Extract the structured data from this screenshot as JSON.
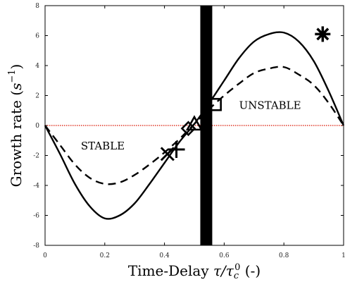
{
  "chart_data": {
    "type": "line",
    "xlabel": "Time-Delay τ/τ_c^0 (-)",
    "ylabel": "Growth rate (s^-1)",
    "xlim": [
      0,
      1
    ],
    "ylim": [
      -8,
      8
    ],
    "x_ticks": [
      "0",
      "0.2",
      "0.4",
      "0.6",
      "0.8",
      "1"
    ],
    "y_ticks": [
      "8",
      "6",
      "4",
      "2",
      "0",
      "-2",
      "-4",
      "-6",
      "-8"
    ],
    "series": [
      {
        "style": "solid",
        "x": [
          0,
          0.05,
          0.1,
          0.15,
          0.2,
          0.25,
          0.3,
          0.35,
          0.4,
          0.45,
          0.5,
          0.55,
          0.6,
          0.65,
          0.7,
          0.75,
          0.8,
          0.85,
          0.9,
          0.95,
          1.0
        ],
        "y": [
          0,
          -1.9,
          -3.9,
          -5.4,
          -6.2,
          -6.0,
          -5.2,
          -3.9,
          -2.5,
          -1.1,
          0.1,
          1.5,
          3.0,
          4.5,
          5.6,
          6.1,
          6.2,
          5.6,
          4.3,
          2.3,
          0
        ]
      },
      {
        "style": "dashed",
        "x": [
          0,
          0.05,
          0.1,
          0.15,
          0.2,
          0.25,
          0.3,
          0.35,
          0.4,
          0.45,
          0.5,
          0.55,
          0.6,
          0.65,
          0.7,
          0.75,
          0.8,
          0.85,
          0.9,
          0.95,
          1.0
        ],
        "y": [
          0,
          -1.3,
          -2.6,
          -3.5,
          -3.9,
          -3.8,
          -3.3,
          -2.6,
          -1.8,
          -0.9,
          0.1,
          1.1,
          2.0,
          2.8,
          3.5,
          3.8,
          3.9,
          3.4,
          2.7,
          1.5,
          0
        ]
      }
    ],
    "reference_line": {
      "y": 0,
      "color": "#e03a2a",
      "style": "dotted"
    },
    "vertical_band": {
      "x_from": 0.52,
      "x_to": 0.56,
      "color": "#000000"
    },
    "markers": [
      {
        "symbol": "asterisk",
        "x": 0.93,
        "y": 6.1
      },
      {
        "symbol": "plus",
        "x": 0.44,
        "y": -1.6
      },
      {
        "symbol": "cross",
        "x": 0.41,
        "y": -1.9
      },
      {
        "symbol": "triangle",
        "x": 0.5,
        "y": 0.1
      },
      {
        "symbol": "diamond",
        "x": 0.48,
        "y": -0.2
      },
      {
        "symbol": "square",
        "x": 0.57,
        "y": 1.4
      }
    ],
    "annotations": [
      {
        "text": "STABLE",
        "x": 0.12,
        "y": -1.6
      },
      {
        "text": "UNSTABLE",
        "x": 0.65,
        "y": 1.1
      }
    ],
    "grid": false,
    "line_color": "#000000"
  }
}
